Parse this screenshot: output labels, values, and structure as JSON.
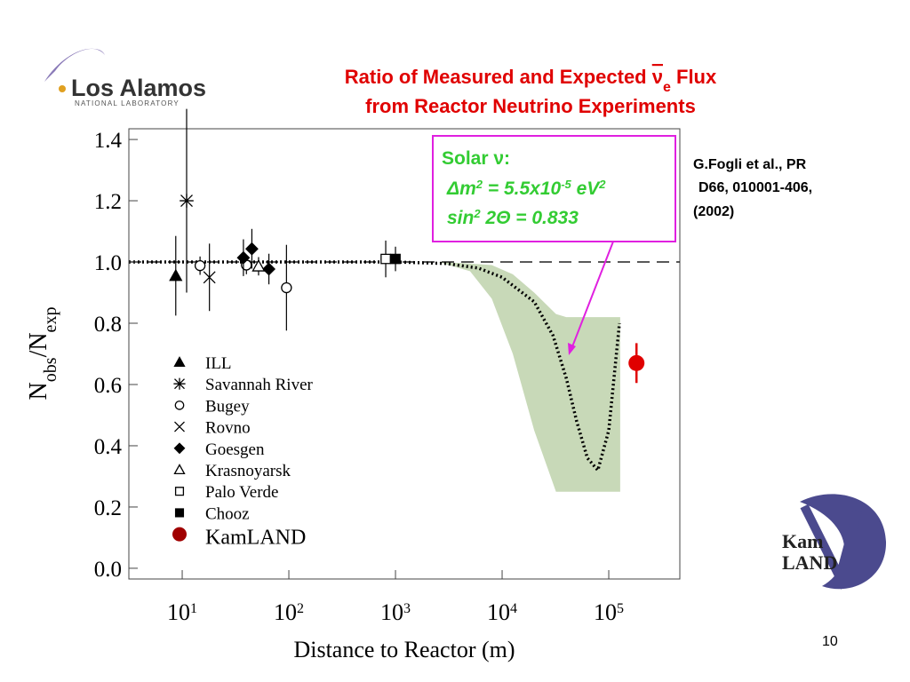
{
  "header": {
    "logo_name": "Los Alamos",
    "logo_sub": "NATIONAL LABORATORY"
  },
  "citation": [
    "G.Fogli et al., PR",
    "D66, 010001-406,",
    "(2002)"
  ],
  "logo2": [
    "Kam",
    "LAND"
  ],
  "page_number": "10",
  "annotation": {
    "heading": "Solar ν:",
    "lines": [
      [
        "Δm",
        "2",
        " = 5.5x10",
        "-5",
        " eV",
        "2"
      ],
      [
        "sin",
        "2",
        " 2Θ = 0.833"
      ]
    ]
  },
  "chart_data": {
    "type": "scatter",
    "title": [
      [
        "Ratio of Measured and Expected ",
        "ν",
        "e",
        " Flux"
      ],
      [
        "from Reactor Neutrino Experiments"
      ]
    ],
    "x_label": "Distance to Reactor (m)",
    "y_label": [
      "N",
      "obs",
      "/N",
      "exp"
    ],
    "x_log": true,
    "xlim": [
      3.16,
      464000
    ],
    "ylim": [
      -0.035,
      1.435
    ],
    "xticks": [
      {
        "value": 10,
        "label": "10",
        "exponent": "1"
      },
      {
        "value": 100,
        "label": "10",
        "exponent": "2"
      },
      {
        "value": 1000,
        "label": "10",
        "exponent": "3"
      },
      {
        "value": 10000,
        "label": "10",
        "exponent": "4"
      },
      {
        "value": 100000,
        "label": "10",
        "exponent": "5"
      }
    ],
    "yticks": [
      {
        "value": 0,
        "label": "0.0"
      },
      {
        "value": 0.2,
        "label": "0.2"
      },
      {
        "value": 0.4,
        "label": "0.4"
      },
      {
        "value": 0.6,
        "label": "0.6"
      },
      {
        "value": 0.8,
        "label": "0.8"
      },
      {
        "value": 1,
        "label": "1.0"
      },
      {
        "value": 1.2,
        "label": "1.2"
      },
      {
        "value": 1.4,
        "label": "1.4"
      }
    ],
    "hline": 1,
    "band": {
      "color": "#c8d9b8",
      "x": [
        2500,
        5000,
        8000,
        12600,
        20000,
        32000,
        40000,
        128000
      ],
      "upper": [
        1.0,
        0.995,
        0.99,
        0.96,
        0.9,
        0.83,
        0.82,
        0.82
      ],
      "lower": [
        1.0,
        0.97,
        0.88,
        0.7,
        0.45,
        0.25,
        0.25,
        0.25
      ]
    },
    "curve": {
      "x": [
        3.16,
        1000,
        3000,
        6000,
        10000,
        20000,
        30000,
        40000,
        50000,
        63000,
        79000,
        100000,
        126000
      ],
      "values": [
        1.0,
        1.0,
        0.995,
        0.98,
        0.95,
        0.87,
        0.76,
        0.62,
        0.48,
        0.36,
        0.32,
        0.45,
        0.8
      ]
    },
    "series": [
      {
        "name": "ILL",
        "marker": "triangle",
        "color": "#000000",
        "x": [
          8.7
        ],
        "values": [
          0.955
        ],
        "errors": [
          0.13
        ]
      },
      {
        "name": "Savannah River",
        "marker": "asterisk",
        "color": "#000000",
        "x": [
          11
        ],
        "values": [
          1.2
        ],
        "errors": [
          0.3
        ]
      },
      {
        "name": "Bugey",
        "marker": "circle-open",
        "color": "#000000",
        "x": [
          14.7,
          40,
          95
        ],
        "values": [
          0.988,
          0.99,
          0.916
        ],
        "errors": [
          0.03,
          0.03,
          0.14
        ]
      },
      {
        "name": "Rovno",
        "marker": "cross",
        "color": "#000000",
        "x": [
          18
        ],
        "values": [
          0.95
        ],
        "errors": [
          0.11
        ]
      },
      {
        "name": "Goesgen",
        "marker": "diamond",
        "color": "#000000",
        "x": [
          37.5,
          45,
          65
        ],
        "values": [
          1.014,
          1.043,
          0.977
        ],
        "errors": [
          0.06,
          0.065,
          0.05
        ]
      },
      {
        "name": "Krasnoyarsk",
        "marker": "triangle-open",
        "color": "#000000",
        "x": [
          52
        ],
        "values": [
          0.986
        ],
        "errors": [
          0.03
        ]
      },
      {
        "name": "Palo Verde",
        "marker": "square-open",
        "color": "#000000",
        "x": [
          810
        ],
        "values": [
          1.01
        ],
        "errors": [
          0.06
        ]
      },
      {
        "name": "Chooz",
        "marker": "square",
        "color": "#000000",
        "x": [
          1000
        ],
        "values": [
          1.01
        ],
        "errors": [
          0.04
        ]
      },
      {
        "name": "KamLAND",
        "marker": "circle",
        "color": "#e00000",
        "x": [
          182000
        ],
        "values": [
          0.67
        ],
        "errors": [
          0.065
        ]
      }
    ]
  }
}
